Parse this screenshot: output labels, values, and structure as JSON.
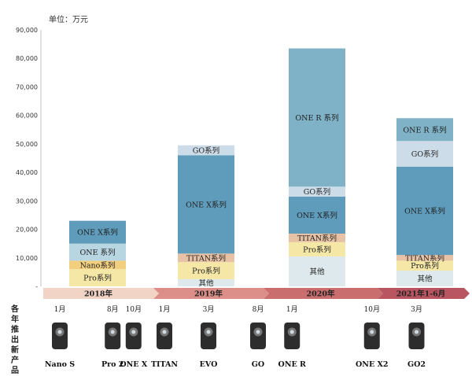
{
  "chart_data": {
    "type": "bar",
    "stacked": true,
    "unit_label": "单位：万元",
    "ylim": [
      0,
      90000
    ],
    "y_ticks": [
      "90,000",
      "80,000",
      "70,000",
      "60,000",
      "50,000",
      "40,000",
      "30,000",
      "20,000",
      "10,000",
      "-"
    ],
    "y_tick_values": [
      90000,
      80000,
      70000,
      60000,
      50000,
      40000,
      30000,
      20000,
      10000,
      0
    ],
    "categories": [
      "2018年",
      "2019年",
      "2020年",
      "2021年1-6月"
    ],
    "series": [
      {
        "name": "其他",
        "color": "#dde9ec",
        "values": [
          0,
          2500,
          10500,
          5500
        ],
        "labels": [
          "",
          "其他",
          "其他",
          "其他"
        ]
      },
      {
        "name": "Pro系列",
        "color": "#f5e7a6",
        "values": [
          6000,
          6000,
          5000,
          3500
        ],
        "labels": [
          "Pro系列",
          "Pro系列",
          "Pro系列",
          "Pro系列"
        ]
      },
      {
        "name": "Nano系列",
        "color": "#f2cf7f",
        "values": [
          3000,
          0,
          0,
          0
        ],
        "labels": [
          "Nano系列",
          "",
          "",
          ""
        ]
      },
      {
        "name": "TITAN系列",
        "color": "#e8c2a5",
        "values": [
          0,
          3000,
          3000,
          2000
        ],
        "labels": [
          "",
          "TITAN系列",
          "TITAN系列",
          "TITAN系列"
        ]
      },
      {
        "name": "ONE系列",
        "color": "#b8d6e1",
        "values": [
          6000,
          0,
          0,
          0
        ],
        "labels": [
          "ONE 系列",
          "",
          "",
          ""
        ]
      },
      {
        "name": "ONE X系列",
        "color": "#5f9bba",
        "values": [
          8000,
          34500,
          13000,
          31000
        ],
        "labels": [
          "ONE X系列",
          "ONE X系列",
          "ONE X系列",
          "ONE X系列"
        ]
      },
      {
        "name": "GO系列",
        "color": "#ccdce8",
        "values": [
          0,
          3500,
          3500,
          9000
        ],
        "labels": [
          "",
          "GO系列",
          "GO系列",
          "GO系列"
        ]
      },
      {
        "name": "ONE R系列",
        "color": "#7fb2c6",
        "values": [
          0,
          0,
          48500,
          8000
        ],
        "labels": [
          "",
          "",
          "ONE R 系列",
          "ONE R 系列"
        ]
      }
    ],
    "timeline": {
      "side_label": [
        "各",
        "年",
        "推",
        "出",
        "新",
        "产",
        "品"
      ],
      "events": [
        {
          "month": "1月",
          "product": "Nano S",
          "year_index": 0,
          "pos": 0.15
        },
        {
          "month": "8月",
          "product": "Pro 2",
          "year_index": 0,
          "pos": 0.63
        },
        {
          "month": "10月",
          "product": "ONE X",
          "year_index": 0,
          "pos": 0.82
        },
        {
          "month": "1月",
          "product": "TITAN",
          "year_index": 1,
          "pos": 0.1
        },
        {
          "month": "3月",
          "product": "EVO",
          "year_index": 1,
          "pos": 0.5
        },
        {
          "month": "8月",
          "product": "GO",
          "year_index": 1,
          "pos": 0.95
        },
        {
          "month": "1月",
          "product": "ONE R",
          "year_index": 2,
          "pos": 0.25
        },
        {
          "month": "10月",
          "product": "ONE X2",
          "year_index": 2,
          "pos": 0.95
        },
        {
          "month": "3月",
          "product": "GO2",
          "year_index": 3,
          "pos": 0.45
        }
      ]
    }
  }
}
